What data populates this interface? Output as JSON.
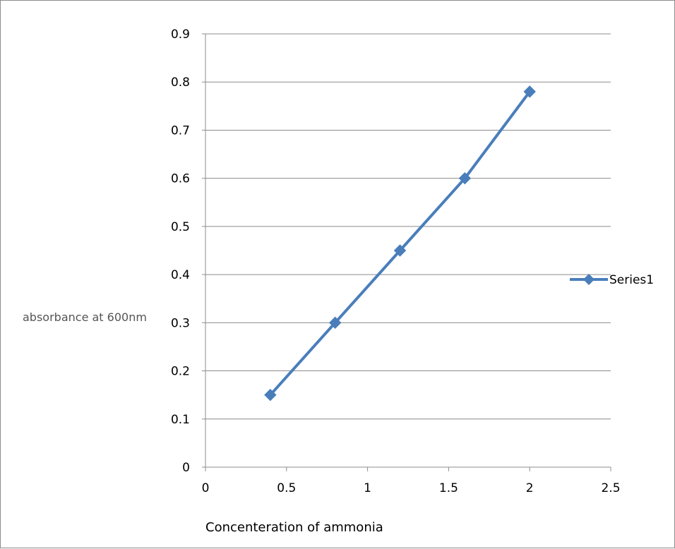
{
  "chart_data": {
    "type": "line",
    "title": "",
    "xlabel": "Concenteration of ammonia",
    "ylabel": "absorbance at 600nm",
    "xlim": [
      0,
      2.5
    ],
    "ylim": [
      0,
      0.9
    ],
    "x_ticks": [
      "0",
      "0.5",
      "1",
      "1.5",
      "2",
      "2.5"
    ],
    "y_ticks": [
      "0",
      "0.1",
      "0.2",
      "0.3",
      "0.4",
      "0.5",
      "0.6",
      "0.7",
      "0.8",
      "0.9"
    ],
    "grid": "horizontal",
    "legend_position": "right",
    "marker": "diamond",
    "series": [
      {
        "name": "Series1",
        "color": "#4a7ebb",
        "x": [
          0.4,
          0.8,
          1.2,
          1.6,
          2.0
        ],
        "y": [
          0.15,
          0.3,
          0.45,
          0.6,
          0.78
        ]
      }
    ]
  }
}
